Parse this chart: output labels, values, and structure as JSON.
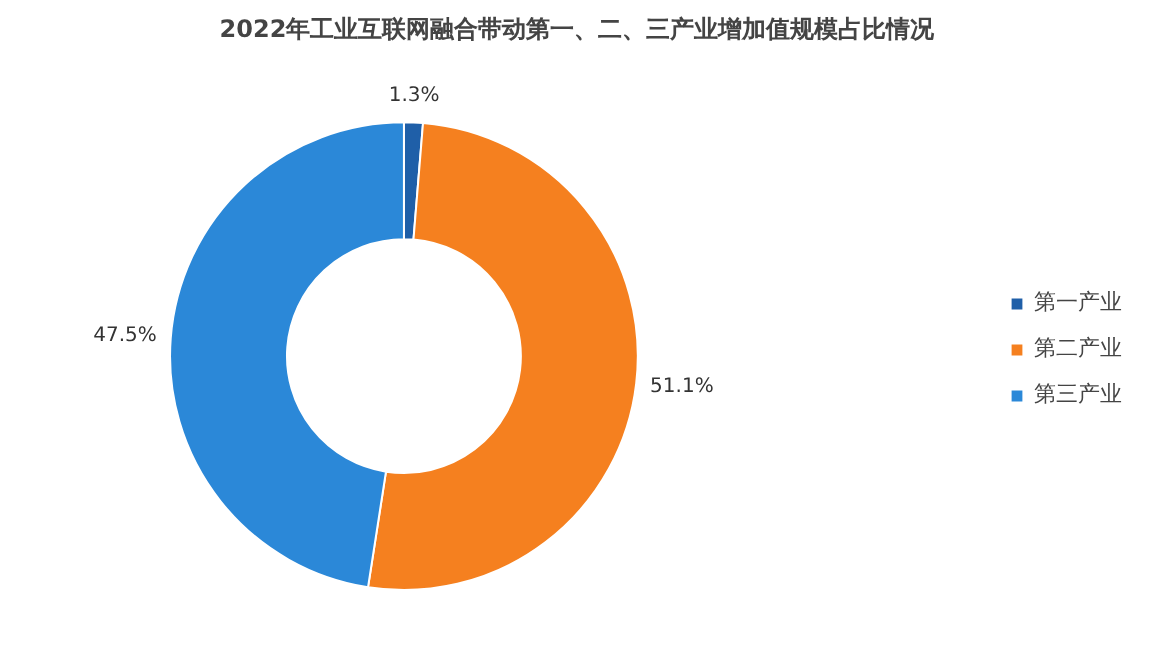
{
  "chart_data": {
    "type": "donut",
    "title": "2022年工业互联网融合带动第一、二、三产业增加值规模占比情况",
    "categories": [
      "第一产业",
      "第二产业",
      "第三产业"
    ],
    "values": [
      1.3,
      51.1,
      47.5
    ],
    "colors": [
      "#1f5fa8",
      "#f5801f",
      "#2b88d8"
    ],
    "value_labels": [
      "1.3%",
      "51.1%",
      "47.5%"
    ],
    "legend": "right"
  }
}
